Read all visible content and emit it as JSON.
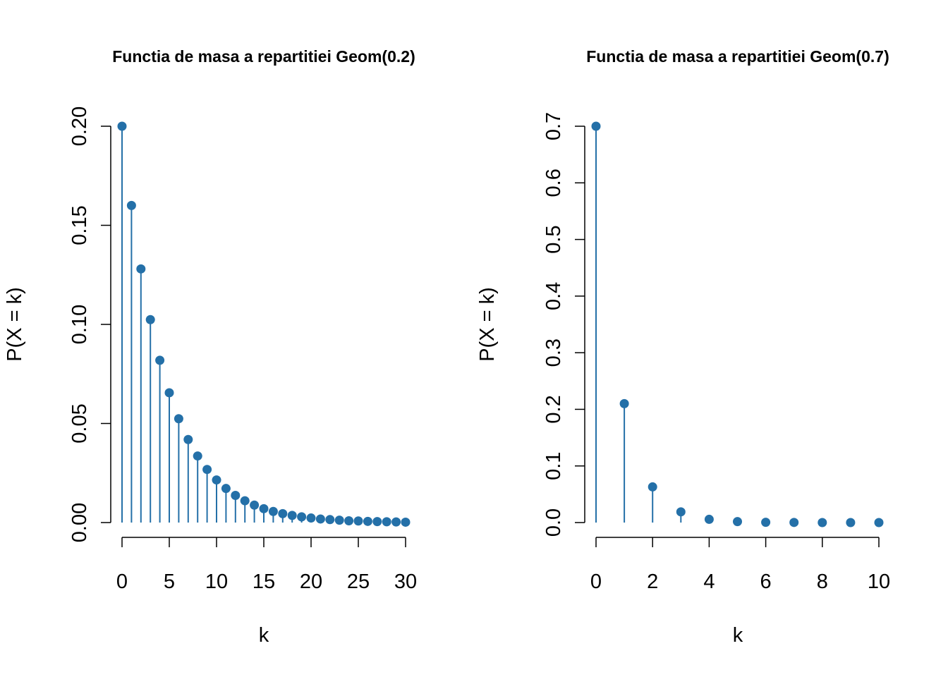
{
  "chart_data": [
    {
      "type": "stem",
      "title": "Functia de masa a repartitiei Geom(0.2)",
      "xlabel": "k",
      "ylabel": "P(X = k)",
      "color": "#2470a8",
      "xlim": [
        0,
        30
      ],
      "ylim": [
        0,
        0.2
      ],
      "xticks": [
        "0",
        "5",
        "10",
        "15",
        "20",
        "25",
        "30"
      ],
      "yticks": [
        "0.00",
        "0.05",
        "0.10",
        "0.15",
        "0.20"
      ],
      "x": [
        0,
        1,
        2,
        3,
        4,
        5,
        6,
        7,
        8,
        9,
        10,
        11,
        12,
        13,
        14,
        15,
        16,
        17,
        18,
        19,
        20,
        21,
        22,
        23,
        24,
        25,
        26,
        27,
        28,
        29,
        30
      ],
      "values": [
        0.2,
        0.16,
        0.128,
        0.1024,
        0.0819,
        0.0655,
        0.0524,
        0.0419,
        0.0336,
        0.0268,
        0.0215,
        0.0172,
        0.0137,
        0.011,
        0.0088,
        0.007,
        0.0056,
        0.0045,
        0.0036,
        0.0029,
        0.0023,
        0.0018,
        0.0015,
        0.0012,
        0.0009,
        0.0008,
        0.0006,
        0.0005,
        0.0004,
        0.0003,
        0.0002
      ],
      "grid": false
    },
    {
      "type": "stem",
      "title": "Functia de masa a repartitiei Geom(0.7)",
      "xlabel": "k",
      "ylabel": "P(X = k)",
      "color": "#2470a8",
      "xlim": [
        0,
        10
      ],
      "ylim": [
        0,
        0.7
      ],
      "xticks": [
        "0",
        "2",
        "4",
        "6",
        "8",
        "10"
      ],
      "yticks": [
        "0.0",
        "0.1",
        "0.2",
        "0.3",
        "0.4",
        "0.5",
        "0.6",
        "0.7"
      ],
      "x": [
        0,
        1,
        2,
        3,
        4,
        5,
        6,
        7,
        8,
        9,
        10
      ],
      "values": [
        0.7,
        0.21,
        0.063,
        0.0189,
        0.0057,
        0.0017,
        0.0005,
        0.0002,
        0.0,
        0.0,
        0.0
      ],
      "grid": false
    }
  ]
}
